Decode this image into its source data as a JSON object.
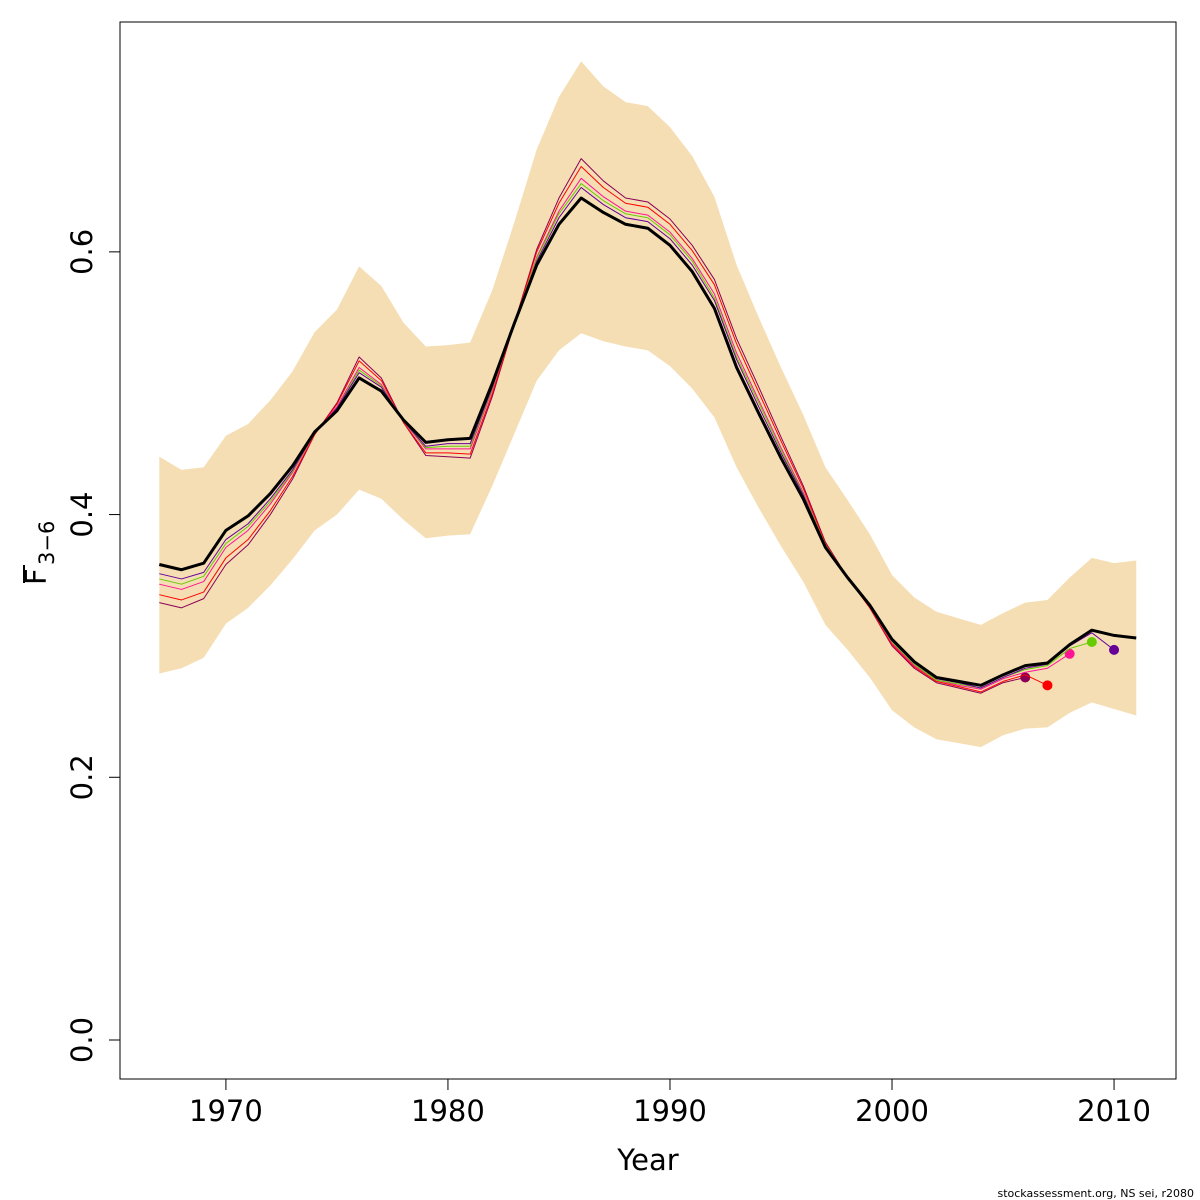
{
  "chart_data": {
    "type": "line",
    "xlabel": "Year",
    "ylabel": "F",
    "ylabel_sub": "3−6",
    "footer": "stockassessment.org, NS sei, r2080",
    "x": [
      1967,
      1968,
      1969,
      1970,
      1971,
      1972,
      1973,
      1974,
      1975,
      1976,
      1977,
      1978,
      1979,
      1980,
      1981,
      1982,
      1983,
      1984,
      1985,
      1986,
      1987,
      1988,
      1989,
      1990,
      1991,
      1992,
      1993,
      1994,
      1995,
      1996,
      1997,
      1998,
      1999,
      2000,
      2001,
      2002,
      2003,
      2004,
      2005,
      2006,
      2007,
      2008,
      2009,
      2010,
      2011
    ],
    "xlim": [
      1965.23,
      2012.79
    ],
    "ylim": [
      -0.0297,
      0.775
    ],
    "xticks": [
      1970,
      1980,
      1990,
      2000,
      2010
    ],
    "yticks": [
      {
        "value": 0,
        "label": "0.0"
      },
      0.2,
      0.4,
      0.6
    ],
    "band": {
      "color": "#f5deb3",
      "upper": [
        0.444,
        0.434,
        0.436,
        0.46,
        0.469,
        0.487,
        0.509,
        0.539,
        0.556,
        0.589,
        0.574,
        0.546,
        0.528,
        0.529,
        0.531,
        0.571,
        0.623,
        0.678,
        0.718,
        0.745,
        0.726,
        0.714,
        0.711,
        0.695,
        0.673,
        0.642,
        0.59,
        0.55,
        0.512,
        0.476,
        0.436,
        0.411,
        0.385,
        0.354,
        0.337,
        0.326,
        0.321,
        0.316,
        0.325,
        0.333,
        0.335,
        0.352,
        0.367,
        0.363,
        0.365
      ],
      "lower": [
        0.279,
        0.283,
        0.291,
        0.317,
        0.329,
        0.346,
        0.366,
        0.388,
        0.4,
        0.419,
        0.412,
        0.396,
        0.382,
        0.384,
        0.385,
        0.422,
        0.462,
        0.502,
        0.525,
        0.538,
        0.532,
        0.528,
        0.525,
        0.513,
        0.496,
        0.474,
        0.436,
        0.405,
        0.376,
        0.349,
        0.316,
        0.297,
        0.276,
        0.251,
        0.238,
        0.229,
        0.226,
        0.223,
        0.232,
        0.237,
        0.238,
        0.249,
        0.257,
        0.252,
        0.247
      ]
    },
    "series": [
      {
        "color": "#8b0057",
        "width": 1,
        "marker_last": true,
        "values": [
          0.333,
          0.329,
          0.336,
          0.362,
          0.377,
          0.4,
          0.427,
          0.461,
          0.485,
          0.52,
          0.504,
          0.47,
          0.445,
          0.444,
          0.443,
          0.49,
          0.546,
          0.602,
          0.641,
          0.671,
          0.654,
          0.641,
          0.638,
          0.625,
          0.605,
          0.579,
          0.534,
          0.497,
          0.459,
          0.422,
          0.379,
          0.352,
          0.329,
          0.3,
          0.283,
          0.272,
          0.268,
          0.264,
          0.272,
          0.276,
          null,
          null,
          null,
          null,
          null
        ]
      },
      {
        "color": "#ff0000",
        "width": 1,
        "marker_last": true,
        "values": [
          0.339,
          0.335,
          0.341,
          0.367,
          0.381,
          0.403,
          0.429,
          0.461,
          0.484,
          0.517,
          0.502,
          0.47,
          0.447,
          0.447,
          0.446,
          0.492,
          0.546,
          0.6,
          0.637,
          0.665,
          0.649,
          0.637,
          0.634,
          0.621,
          0.601,
          0.575,
          0.53,
          0.493,
          0.456,
          0.42,
          0.378,
          0.352,
          0.329,
          0.301,
          0.284,
          0.273,
          0.269,
          0.265,
          0.273,
          0.278,
          0.27,
          null,
          null,
          null,
          null
        ]
      },
      {
        "color": "#ff1493",
        "width": 1,
        "marker_last": true,
        "values": [
          0.347,
          0.343,
          0.349,
          0.375,
          0.388,
          0.408,
          0.432,
          0.462,
          0.482,
          0.512,
          0.499,
          0.471,
          0.45,
          0.45,
          0.45,
          0.495,
          0.546,
          0.596,
          0.631,
          0.656,
          0.642,
          0.631,
          0.628,
          0.615,
          0.595,
          0.568,
          0.523,
          0.487,
          0.451,
          0.417,
          0.377,
          0.352,
          0.33,
          0.302,
          0.285,
          0.274,
          0.27,
          0.267,
          0.275,
          0.28,
          0.283,
          0.294,
          null,
          null,
          null
        ]
      },
      {
        "color": "#66cc00",
        "width": 1,
        "marker_last": true,
        "values": [
          0.351,
          0.347,
          0.353,
          0.378,
          0.391,
          0.41,
          0.433,
          0.462,
          0.481,
          0.51,
          0.498,
          0.471,
          0.451,
          0.452,
          0.452,
          0.496,
          0.546,
          0.595,
          0.629,
          0.652,
          0.639,
          0.629,
          0.626,
          0.613,
          0.593,
          0.565,
          0.52,
          0.485,
          0.449,
          0.416,
          0.377,
          0.352,
          0.33,
          0.303,
          0.286,
          0.274,
          0.271,
          0.268,
          0.276,
          0.282,
          0.285,
          0.298,
          0.303,
          null,
          null
        ]
      },
      {
        "color": "#660099",
        "width": 1,
        "marker_last": true,
        "values": [
          0.355,
          0.351,
          0.356,
          0.381,
          0.393,
          0.412,
          0.434,
          0.462,
          0.481,
          0.508,
          0.497,
          0.471,
          0.452,
          0.454,
          0.454,
          0.497,
          0.546,
          0.593,
          0.626,
          0.649,
          0.636,
          0.626,
          0.623,
          0.61,
          0.59,
          0.563,
          0.518,
          0.482,
          0.447,
          0.415,
          0.376,
          0.352,
          0.33,
          0.304,
          0.287,
          0.275,
          0.272,
          0.268,
          0.276,
          0.283,
          0.286,
          0.3,
          0.31,
          0.297,
          null
        ]
      },
      {
        "color": "#000000",
        "width": 3,
        "marker_last": false,
        "values": [
          0.362,
          0.358,
          0.363,
          0.388,
          0.399,
          0.416,
          0.437,
          0.463,
          0.479,
          0.504,
          0.494,
          0.472,
          0.455,
          0.457,
          0.458,
          0.5,
          0.546,
          0.59,
          0.621,
          0.641,
          0.63,
          0.621,
          0.618,
          0.605,
          0.585,
          0.557,
          0.512,
          0.477,
          0.443,
          0.412,
          0.375,
          0.352,
          0.331,
          0.305,
          0.288,
          0.276,
          0.273,
          0.27,
          0.278,
          0.285,
          0.287,
          0.301,
          0.312,
          0.308,
          0.306
        ]
      }
    ]
  }
}
